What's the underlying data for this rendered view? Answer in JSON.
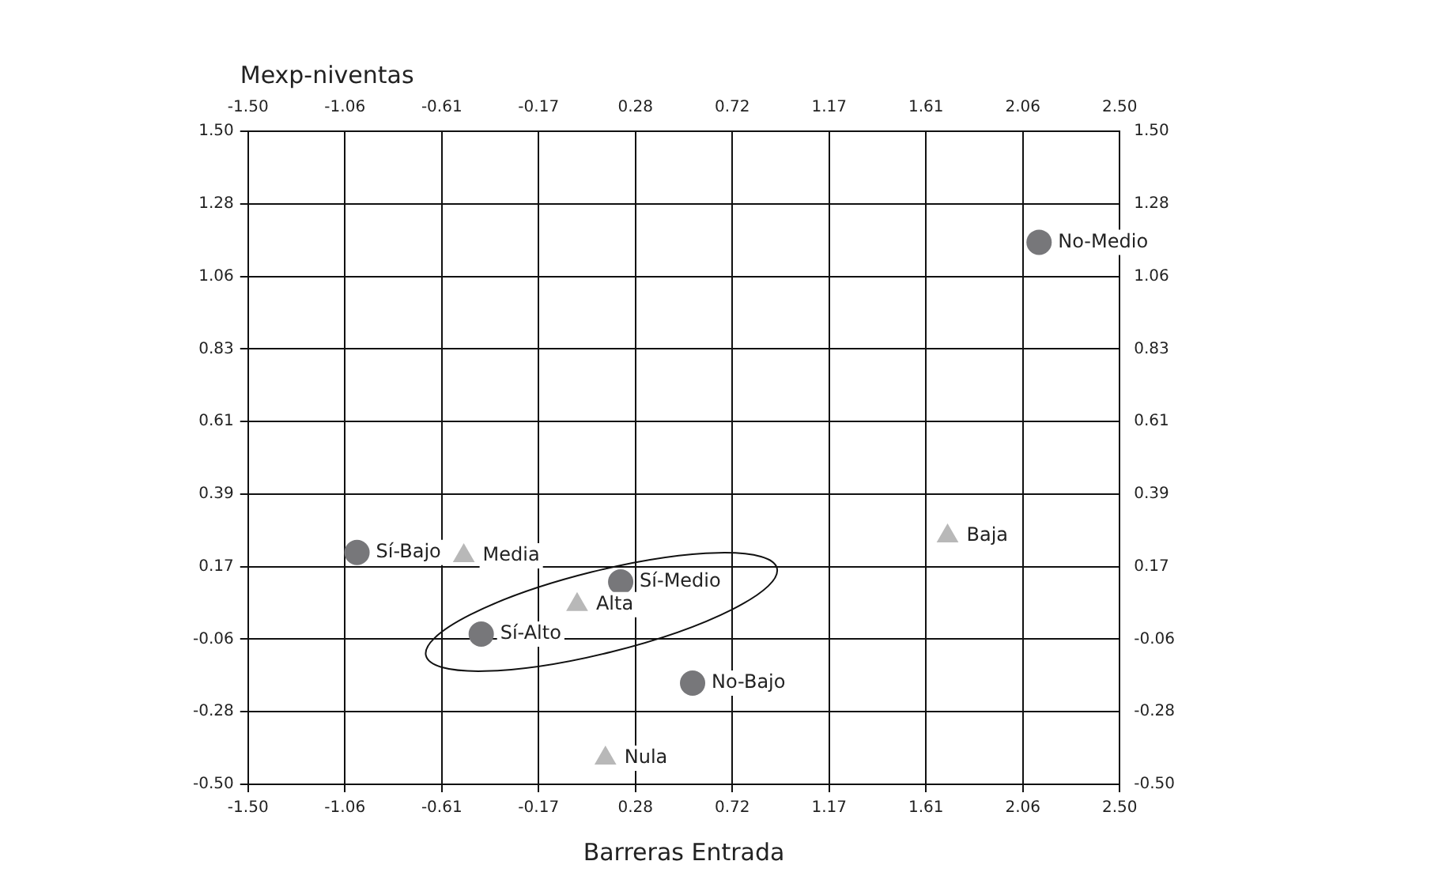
{
  "chart_data": {
    "type": "scatter",
    "xlabel": "Barreras Entrada",
    "ylabel": "Mexp-niventas",
    "series": [
      {
        "type": "scatter",
        "marker": "circle",
        "color": "#77777a",
        "x": [
          -1.0,
          0.21,
          -0.43,
          0.54,
          2.13
        ],
        "values": [
          0.21,
          0.12,
          -0.04,
          -0.19,
          1.16
        ]
      },
      {
        "type": "scatter",
        "marker": "triangle",
        "color": "#b8b8b8",
        "x": [
          -0.51,
          0.01,
          0.14,
          1.71
        ],
        "values": [
          0.2,
          0.05,
          -0.42,
          0.26
        ]
      }
    ],
    "annotations": [
      {
        "text": "Sí-Bajo",
        "x": -1.0,
        "y": 0.21
      },
      {
        "text": "Sí-Medio",
        "x": 0.21,
        "y": 0.12
      },
      {
        "text": "Sí-Alto",
        "x": -0.43,
        "y": -0.04
      },
      {
        "text": "No-Bajo",
        "x": 0.54,
        "y": -0.19
      },
      {
        "text": "No-Medio",
        "x": 2.13,
        "y": 1.16
      },
      {
        "text": "Media",
        "x": -0.51,
        "y": 0.2
      },
      {
        "text": "Alta",
        "x": 0.01,
        "y": 0.05
      },
      {
        "text": "Nula",
        "x": 0.14,
        "y": -0.42
      },
      {
        "text": "Baja",
        "x": 1.71,
        "y": 0.26
      }
    ],
    "xlim": [
      -1.5,
      2.5
    ],
    "xticks": [
      {
        "value": -1.5,
        "label": "-1.50"
      },
      {
        "value": -1.0556,
        "label": "-1.06"
      },
      {
        "value": -0.6111,
        "label": "-0.61"
      },
      {
        "value": -0.1667,
        "label": "-0.17"
      },
      {
        "value": 0.2778,
        "label": "0.28"
      },
      {
        "value": 0.7222,
        "label": "0.72"
      },
      {
        "value": 1.1667,
        "label": "1.17"
      },
      {
        "value": 1.6111,
        "label": "1.61"
      },
      {
        "value": 2.0556,
        "label": "2.06"
      },
      {
        "value": 2.5,
        "label": "2.50"
      }
    ],
    "x2lim": [
      -1.5,
      2.5
    ],
    "x2ticks": [
      {
        "value": -1.5,
        "label": "-1.50"
      },
      {
        "value": -1.0556,
        "label": "-1.06"
      },
      {
        "value": -0.6111,
        "label": "-0.61"
      },
      {
        "value": -0.1667,
        "label": "-0.17"
      },
      {
        "value": 0.2778,
        "label": "0.28"
      },
      {
        "value": 0.7222,
        "label": "0.72"
      },
      {
        "value": 1.1667,
        "label": "1.17"
      },
      {
        "value": 1.6111,
        "label": "1.61"
      },
      {
        "value": 2.0556,
        "label": "2.06"
      },
      {
        "value": 2.5,
        "label": "2.50"
      }
    ],
    "ylim": [
      -0.5,
      1.5
    ],
    "yticks": [
      {
        "value": -0.5,
        "label": "-0.50"
      },
      {
        "value": -0.2778,
        "label": "-0.28"
      },
      {
        "value": -0.0556,
        "label": "-0.06"
      },
      {
        "value": 0.1667,
        "label": "0.17"
      },
      {
        "value": 0.3889,
        "label": "0.39"
      },
      {
        "value": 0.6111,
        "label": "0.61"
      },
      {
        "value": 0.8333,
        "label": "0.83"
      },
      {
        "value": 1.0556,
        "label": "1.06"
      },
      {
        "value": 1.2778,
        "label": "1.28"
      },
      {
        "value": 1.5,
        "label": "1.50"
      }
    ],
    "y2lim": [
      -0.5,
      1.5
    ],
    "y2ticks": [
      {
        "value": -0.5,
        "label": "-0.50"
      },
      {
        "value": -0.2778,
        "label": "-0.28"
      },
      {
        "value": -0.0556,
        "label": "-0.06"
      },
      {
        "value": 0.1667,
        "label": "0.17"
      },
      {
        "value": 0.3889,
        "label": "0.39"
      },
      {
        "value": 0.6111,
        "label": "0.61"
      },
      {
        "value": 0.8333,
        "label": "0.83"
      },
      {
        "value": 1.0556,
        "label": "1.06"
      },
      {
        "value": 1.2778,
        "label": "1.28"
      },
      {
        "value": 1.5,
        "label": "1.50"
      }
    ],
    "grid": true,
    "legend": false
  }
}
